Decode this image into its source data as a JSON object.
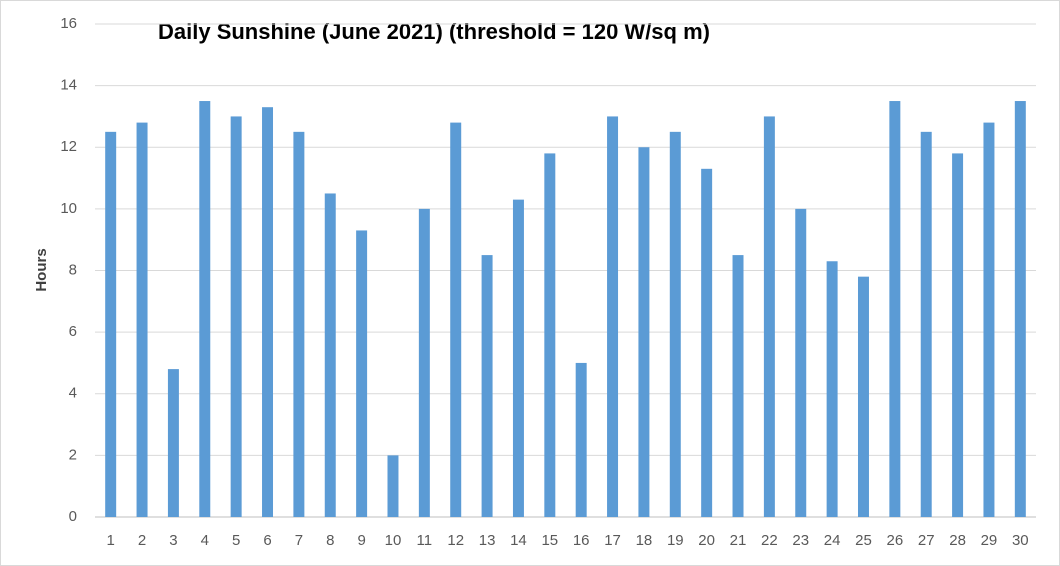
{
  "chart_data": {
    "type": "bar",
    "title": "Daily Sunshine (June 2021) (threshold = 120 W/sq m)",
    "y_label": "Hours",
    "categories": [
      "1",
      "2",
      "3",
      "4",
      "5",
      "6",
      "7",
      "8",
      "9",
      "10",
      "11",
      "12",
      "13",
      "14",
      "15",
      "16",
      "17",
      "18",
      "19",
      "20",
      "21",
      "22",
      "23",
      "24",
      "25",
      "26",
      "27",
      "28",
      "29",
      "30"
    ],
    "values": [
      12.5,
      12.8,
      4.8,
      13.5,
      13.0,
      13.3,
      12.5,
      10.5,
      9.3,
      2.0,
      10.0,
      12.8,
      8.5,
      10.3,
      11.8,
      5.0,
      13.0,
      12.0,
      12.5,
      11.3,
      8.5,
      13.0,
      10.0,
      8.3,
      7.8,
      13.5,
      12.5,
      11.8,
      12.8,
      13.5
    ],
    "color": "#5b9bd5",
    "ylim": [
      0,
      16
    ],
    "yticks": [
      0,
      2,
      4,
      6,
      8,
      10,
      12,
      14,
      16
    ],
    "grid": true
  }
}
